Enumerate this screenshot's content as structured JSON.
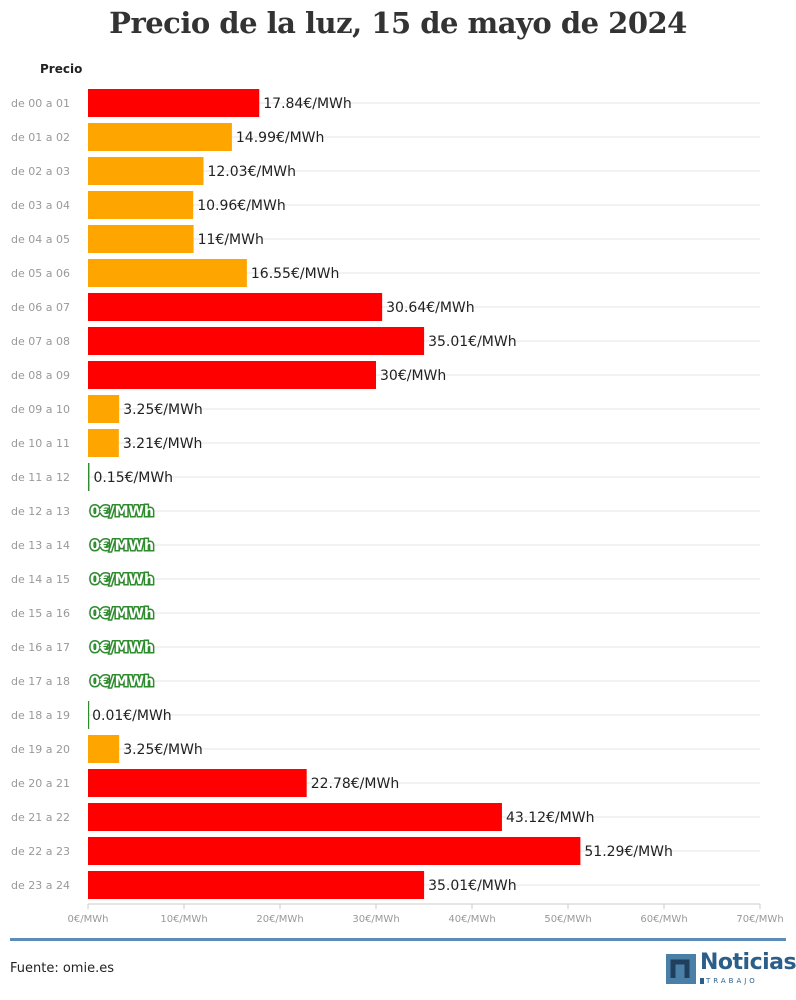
{
  "title": "Precio de la luz, 15 de mayo de 2024",
  "source": "Fuente: omie.es",
  "logo": {
    "word": "Noticias",
    "sub": "TRABAJO"
  },
  "colors": {
    "high": "#ff0000",
    "mid": "#ffa500",
    "low": "#2e8b2e",
    "grid": "#e6e6e6",
    "tick": "#999999",
    "footer": "#5b8db8"
  },
  "chart_data": {
    "type": "bar",
    "orientation": "horizontal",
    "series_label": "Precio",
    "unit": "€/MWh",
    "categories": [
      "de 00 a 01",
      "de 01 a 02",
      "de 02 a 03",
      "de 03 a 04",
      "de 04 a 05",
      "de 05 a 06",
      "de 06 a 07",
      "de 07 a 08",
      "de 08 a 09",
      "de 09 a 10",
      "de 10 a 11",
      "de 11 a 12",
      "de 12 a 13",
      "de 13 a 14",
      "de 14 a 15",
      "de 15 a 16",
      "de 16 a 17",
      "de 17 a 18",
      "de 18 a 19",
      "de 19 a 20",
      "de 20 a 21",
      "de 21 a 22",
      "de 22 a 23",
      "de 23 a 24"
    ],
    "values": [
      17.84,
      14.99,
      12.03,
      10.96,
      11,
      16.55,
      30.64,
      35.01,
      30,
      3.25,
      3.21,
      0.15,
      0,
      0,
      0,
      0,
      0,
      0,
      0.01,
      3.25,
      22.78,
      43.12,
      51.29,
      35.01
    ],
    "value_labels": [
      "17.84€/MWh",
      "14.99€/MWh",
      "12.03€/MWh",
      "10.96€/MWh",
      "11€/MWh",
      "16.55€/MWh",
      "30.64€/MWh",
      "35.01€/MWh",
      "30€/MWh",
      "3.25€/MWh",
      "3.21€/MWh",
      "0.15€/MWh",
      "0€/MWh",
      "0€/MWh",
      "0€/MWh",
      "0€/MWh",
      "0€/MWh",
      "0€/MWh",
      "0.01€/MWh",
      "3.25€/MWh",
      "22.78€/MWh",
      "43.12€/MWh",
      "51.29€/MWh",
      "35.01€/MWh"
    ],
    "levels": [
      "high",
      "mid",
      "mid",
      "mid",
      "mid",
      "mid",
      "high",
      "high",
      "high",
      "mid",
      "mid",
      "low",
      "low",
      "low",
      "low",
      "low",
      "low",
      "low",
      "low",
      "mid",
      "high",
      "high",
      "high",
      "high"
    ],
    "xlim": [
      0,
      70
    ],
    "xticks": [
      0,
      10,
      20,
      30,
      40,
      50,
      60,
      70
    ],
    "xtick_labels": [
      "0€/MWh",
      "10€/MWh",
      "20€/MWh",
      "30€/MWh",
      "40€/MWh",
      "50€/MWh",
      "60€/MWh",
      "70€/MWh"
    ],
    "grid": true,
    "legend": "none"
  }
}
